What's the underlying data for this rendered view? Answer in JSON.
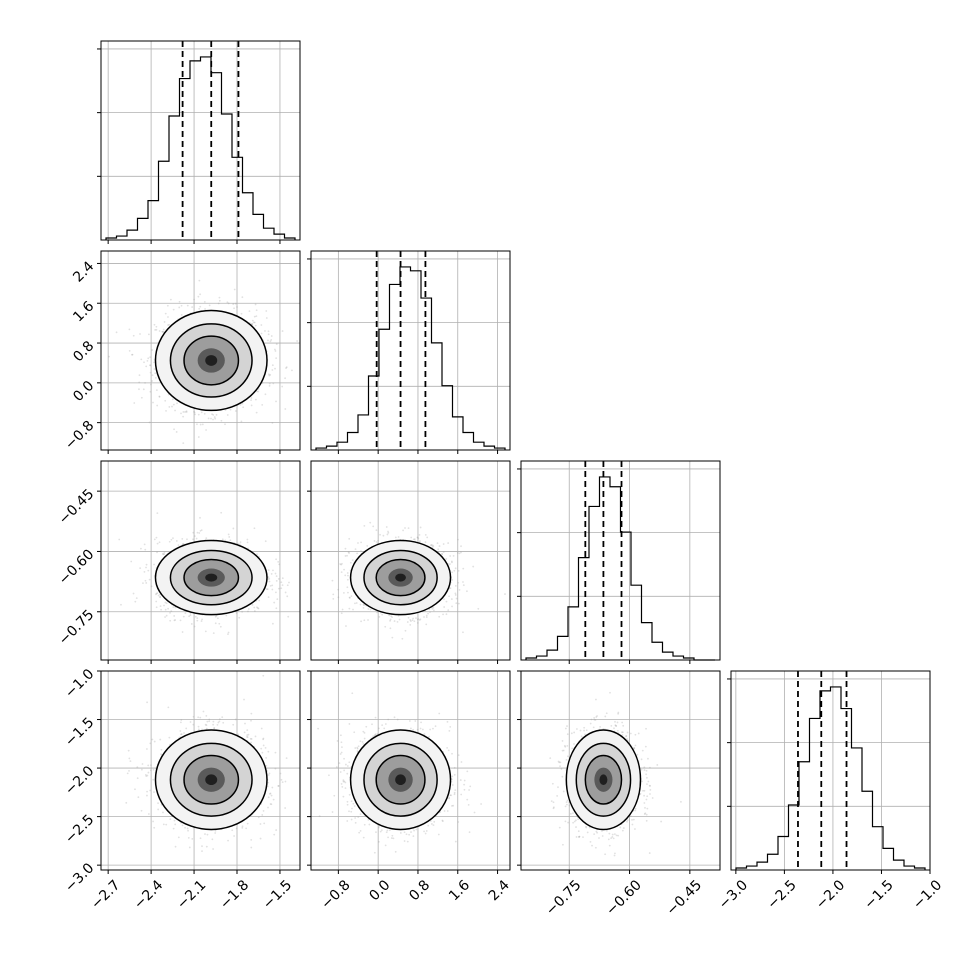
{
  "chart_data": {
    "type": "corner",
    "parameters": [
      {
        "mean": -1.98,
        "sigma": 0.19,
        "quantiles": [
          -2.18,
          -1.98,
          -1.79
        ],
        "range": [
          -2.75,
          -1.36
        ],
        "ticks": [
          -2.7,
          -2.4,
          -2.1,
          -1.8,
          -1.5
        ],
        "tick_labels": [
          "−2.7",
          "−2.4",
          "−2.1",
          "−1.8",
          "−1.5"
        ],
        "hist": [
          1,
          2,
          5,
          11,
          20,
          40,
          63,
          82,
          91,
          93,
          85,
          64,
          42,
          24,
          13,
          6,
          3,
          1
        ]
      },
      {
        "mean": 0.45,
        "sigma": 0.49,
        "quantiles": [
          -0.03,
          0.45,
          0.95
        ],
        "range": [
          -1.35,
          2.65
        ],
        "ticks": [
          -0.8,
          0.0,
          0.8,
          1.6,
          2.4
        ],
        "tick_labels": [
          "−0.8",
          "0.0",
          "0.8",
          "1.6",
          "2.4"
        ],
        "hist": [
          1,
          2,
          4,
          9,
          18,
          38,
          62,
          85,
          94,
          92,
          78,
          55,
          33,
          17,
          9,
          4,
          2,
          1
        ]
      },
      {
        "mean": -0.665,
        "sigma": 0.045,
        "quantiles": [
          -0.71,
          -0.665,
          -0.62
        ],
        "range": [
          -0.87,
          -0.375
        ],
        "ticks": [
          -0.75,
          -0.6,
          -0.45
        ],
        "tick_labels": [
          "−0.75",
          "−0.60",
          "−0.45"
        ],
        "hist": [
          1,
          2,
          5,
          12,
          27,
          52,
          78,
          93,
          88,
          65,
          38,
          19,
          9,
          4,
          2,
          1,
          0,
          0
        ]
      },
      {
        "mean": -2.12,
        "sigma": 0.25,
        "quantiles": [
          -2.36,
          -2.12,
          -1.86
        ],
        "range": [
          -3.05,
          -1.0
        ],
        "ticks": [
          -3.0,
          -2.5,
          -2.0,
          -1.5,
          -1.0
        ],
        "tick_labels": [
          "−3.0",
          "−2.5",
          "−2.0",
          "−1.5",
          "−1.0"
        ],
        "hist": [
          1,
          2,
          4,
          8,
          17,
          33,
          55,
          77,
          91,
          93,
          82,
          62,
          40,
          22,
          11,
          5,
          2,
          1
        ]
      }
    ],
    "grid": true,
    "scatter_points": 6000
  }
}
